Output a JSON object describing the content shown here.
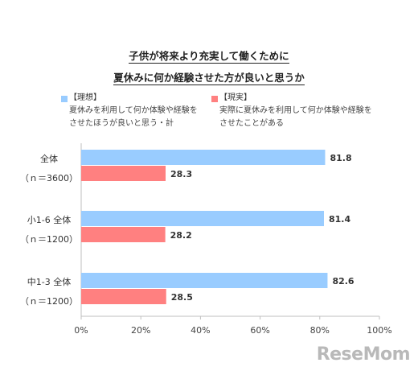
{
  "chart_data": {
    "type": "bar",
    "orientation": "horizontal",
    "title": [
      "子供が将来より充実して働くために",
      "夏休みに何か経験させた方が良いと思うか"
    ],
    "categories": [
      {
        "name": "全体",
        "n": "（ｎ＝3600）"
      },
      {
        "name": "小1-6  全体",
        "n": "（ｎ＝1200）"
      },
      {
        "name": "中1-3  全体",
        "n": "（ｎ＝1200）"
      }
    ],
    "series": [
      {
        "name": "【理想】",
        "description": [
          "夏休みを利用して何か体験や経験を",
          "させたほうが良いと思う・計"
        ],
        "color": "#99ccff",
        "values": [
          81.8,
          81.4,
          82.6
        ]
      },
      {
        "name": "【現実】",
        "description": [
          "実際に夏休みを利用して何か体験や経験を",
          "させたことがある"
        ],
        "color": "#ff8080",
        "values": [
          28.3,
          28.2,
          28.5
        ]
      }
    ],
    "xlim": [
      0,
      100
    ],
    "xticks": [
      "0%",
      "20%",
      "40%",
      "60%",
      "80%",
      "100%"
    ],
    "grid": false,
    "legend": "top"
  },
  "watermark": "ReseMom"
}
